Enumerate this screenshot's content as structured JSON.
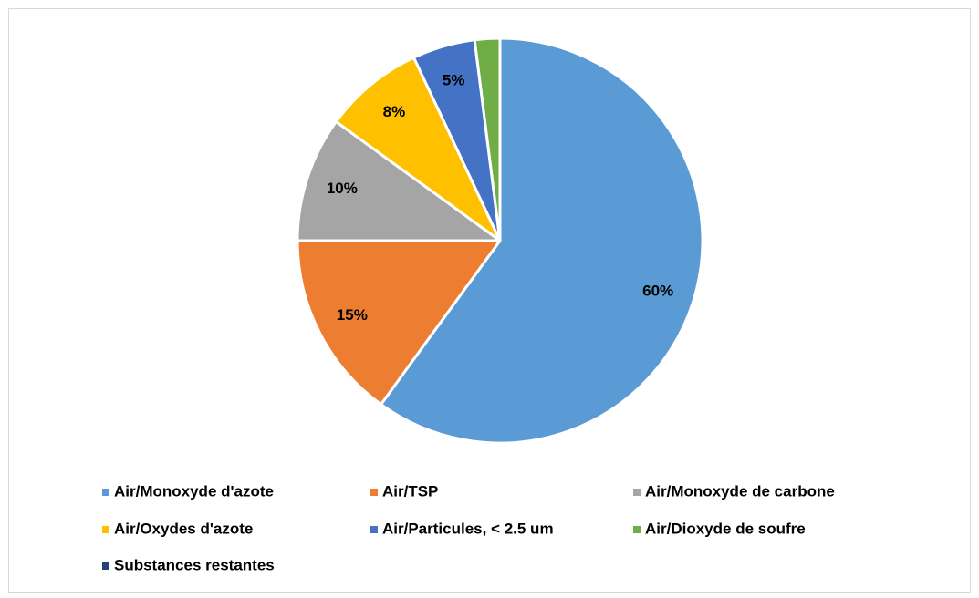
{
  "chart_data": {
    "type": "pie",
    "categories": [
      "Air/Monoxyde d'azote",
      "Air/TSP",
      "Air/Monoxyde de carbone",
      "Air/Oxydes d'azote",
      "Air/Particules, < 2.5 um",
      "Air/Dioxyde de soufre",
      "Substances restantes"
    ],
    "values": [
      60,
      15,
      10,
      8,
      5,
      2,
      0
    ],
    "value_labels": [
      "60%",
      "15%",
      "10%",
      "8%",
      "5%",
      null,
      null
    ],
    "colors": [
      "#5b9bd5",
      "#ed7d31",
      "#a5a5a5",
      "#ffc000",
      "#4472c4",
      "#70ad47",
      "#264478"
    ],
    "legend": "bottom"
  }
}
